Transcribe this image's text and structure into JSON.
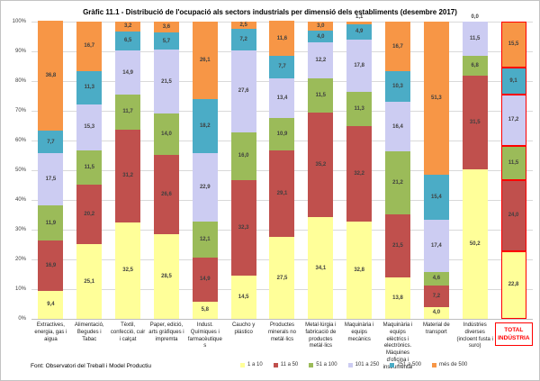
{
  "source_note": "Font: Observatori del Treball i Model Productiu",
  "chart_data": {
    "type": "bar",
    "subtype": "stacked-100-percent",
    "title": "Gràfic 11.1 - Distribució de l'ocupació als sectors industrials per dimensió dels establiments (desembre 2017)",
    "xlabel": "",
    "ylabel": "",
    "ylim": [
      0,
      100
    ],
    "grid": true,
    "legend_position": "bottom",
    "yticks": [
      "0%",
      "10%",
      "20%",
      "30%",
      "40%",
      "50%",
      "60%",
      "70%",
      "80%",
      "90%",
      "100%"
    ],
    "categories": [
      "Extractives, energia, gas i aigua",
      "Alimentació, Begudes i Tabac",
      "Tèxtil, confecció, cuir i calçat",
      "Paper, edició, arts gràfiques i impremta",
      "Indust. Químiques i farmacèutiques",
      "Caucho y plástico",
      "Productes minerals no metàl·lics",
      "Metal·lúrgia i fabricació de productes metàl·lics",
      "Maquinària i equips mecànics",
      "Maquinària i equips elèctrics i electrònics. Màquines d'oficina i instrumental",
      "Material de transport",
      "Indústries diverses (incloent fusta i suro)",
      "TOTAL INDÚSTRIA"
    ],
    "total_column": {
      "index": 12,
      "label_line1": "TOTAL",
      "label_line2": "INDÚSTRIA",
      "highlight_color": "#FF0000"
    },
    "series": [
      {
        "name": "1 a 10",
        "color": "#FFFF99",
        "values": [
          9.4,
          25.1,
          32.5,
          28.5,
          5.8,
          14.5,
          27.5,
          34.1,
          32.8,
          13.8,
          4.0,
          50.2,
          22.8
        ],
        "labels": [
          "9,4",
          "25,1",
          "32,5",
          "28,5",
          "5,8",
          "14,5",
          "27,5",
          "34,1",
          "32,8",
          "13,8",
          "4,0",
          "50,2",
          "22,8"
        ]
      },
      {
        "name": "11 a 50",
        "color": "#C0504D",
        "values": [
          16.9,
          20.2,
          31.2,
          26.6,
          14.9,
          32.3,
          29.1,
          35.2,
          32.2,
          21.5,
          7.2,
          31.5,
          24.0
        ],
        "labels": [
          "16,9",
          "20,2",
          "31,2",
          "26,6",
          "14,9",
          "32,3",
          "29,1",
          "35,2",
          "32,2",
          "21,5",
          "7,2",
          "31,5",
          "24,0"
        ]
      },
      {
        "name": "51 a 100",
        "color": "#9BBB59",
        "values": [
          11.9,
          11.5,
          11.7,
          14.0,
          12.1,
          16.0,
          10.9,
          11.5,
          11.3,
          21.2,
          4.6,
          6.8,
          11.5
        ],
        "labels": [
          "11,9",
          "11,5",
          "11,7",
          "14,0",
          "12,1",
          "16,0",
          "10,9",
          "11,5",
          "11,3",
          "21,2",
          "4,6",
          "6,8",
          "11,5"
        ]
      },
      {
        "name": "101 a 250",
        "color": "#CCCCF2",
        "values": [
          17.5,
          15.3,
          14.9,
          21.5,
          22.9,
          27.6,
          13.4,
          12.2,
          17.8,
          16.4,
          17.4,
          11.5,
          17.2
        ],
        "labels": [
          "17,5",
          "15,3",
          "14,9",
          "21,5",
          "22,9",
          "27,6",
          "13,4",
          "12,2",
          "17,8",
          "16,4",
          "17,4",
          "11,5",
          "17,2"
        ]
      },
      {
        "name": "251 a 500",
        "color": "#4BACC6",
        "values": [
          7.7,
          11.3,
          6.5,
          5.7,
          18.2,
          7.2,
          7.7,
          4.0,
          4.9,
          10.3,
          15.4,
          0.0,
          9.1
        ],
        "labels": [
          "7,7",
          "11,3",
          "6,5",
          "5,7",
          "18,2",
          "7,2",
          "7,7",
          "4,0",
          "4,9",
          "10,3",
          "15,4",
          "0,0",
          "9,1"
        ]
      },
      {
        "name": "més de 500",
        "color": "#F79646",
        "values": [
          36.8,
          16.7,
          3.2,
          3.6,
          26.1,
          2.5,
          11.6,
          3.0,
          1.1,
          16.7,
          51.3,
          0.0,
          15.5
        ],
        "labels": [
          "36,8",
          "16,7",
          "3,2",
          "3,6",
          "26,1",
          "2,5",
          "11,6",
          "3,0",
          "1,1",
          "16,7",
          "51,3",
          "",
          "15,5"
        ]
      }
    ]
  }
}
